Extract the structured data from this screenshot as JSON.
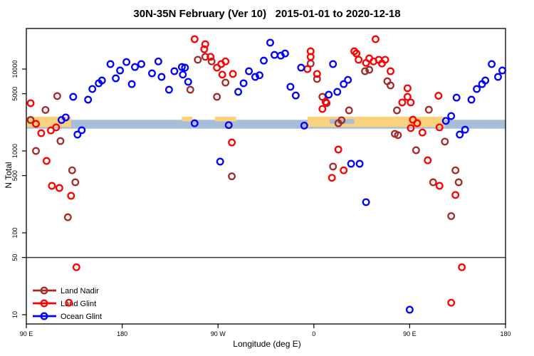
{
  "chart_data": {
    "type": "scatter",
    "title": "30N-35N February (Ver 10)   2015-01-01 to 2020-12-18",
    "xlabel": "Longitude (deg E)",
    "ylabel": "N Total",
    "x_axis": {
      "range": [
        90,
        540
      ],
      "ticks": [
        90,
        180,
        270,
        360,
        450,
        540
      ],
      "tick_labels": [
        "90 E",
        "180",
        "90 W",
        "0",
        "90 E",
        "180"
      ],
      "wraps_longitude": true
    },
    "y_axis": {
      "scale": "log10",
      "range": [
        7.5,
        33000
      ],
      "ticks": [
        10,
        50,
        100,
        500,
        1000,
        5000,
        10000
      ],
      "tick_labels": [
        "10",
        "50",
        "100",
        "500",
        "1000",
        "5000",
        "10000"
      ]
    },
    "reference_line": {
      "y": 50,
      "color": "#3a3a3a"
    },
    "bands": {
      "ocean_stripe": {
        "color": "#A8BDD9",
        "lon": [
          90,
          540
        ],
        "n": [
          1870,
          2400
        ]
      },
      "land_patches": {
        "color": "#FAD17C",
        "segments": [
          {
            "lon": [
              90,
              132
            ],
            "n": [
              1960,
              2620
            ]
          },
          {
            "lon": [
              236,
              246
            ],
            "n": [
              2300,
              2620
            ]
          },
          {
            "lon": [
              267,
              287
            ],
            "n": [
              2300,
              2620
            ]
          },
          {
            "lon": [
              354,
              483
            ],
            "n": [
              1960,
              2620
            ]
          }
        ]
      },
      "ocean_notch": {
        "color": "#A8BDD9",
        "lon": [
          375,
          398
        ],
        "n": [
          2150,
          2450
        ]
      }
    },
    "legend": {
      "position": "bottom-left-inside",
      "marker": "open-circle-on-line"
    },
    "series": [
      {
        "name": "Land Nadir",
        "color": "#A52A2A",
        "points": [
          [
            94,
            2390
          ],
          [
            108,
            3170
          ],
          [
            119,
            4680
          ],
          [
            122,
            1320
          ],
          [
            99,
            1000
          ],
          [
            133,
            580
          ],
          [
            136,
            414
          ],
          [
            129,
            155
          ],
          [
            251,
            13000
          ],
          [
            258,
            14100
          ],
          [
            264,
            12400
          ],
          [
            277,
            6840
          ],
          [
            269,
            4580
          ],
          [
            244,
            5600
          ],
          [
            283,
            490
          ],
          [
            357,
            11700
          ],
          [
            363,
            7570
          ],
          [
            368,
            4580
          ],
          [
            372,
            3830
          ],
          [
            393,
            3130
          ],
          [
            386,
            2370
          ],
          [
            383,
            2180
          ],
          [
            378,
            645
          ],
          [
            408,
            9420
          ],
          [
            412,
            9800
          ],
          [
            429,
            7100
          ],
          [
            432,
            6310
          ],
          [
            438,
            3130
          ],
          [
            468,
            3190
          ],
          [
            436,
            1620
          ],
          [
            439,
            1560
          ],
          [
            456,
            1020
          ],
          [
            472,
            414
          ],
          [
            483,
            1300
          ],
          [
            493,
            580
          ],
          [
            496,
            414
          ],
          [
            489,
            160
          ]
        ]
      },
      {
        "name": "Land Glint",
        "color": "#FF0000",
        "points": [
          [
            94,
            3830
          ],
          [
            99,
            2140
          ],
          [
            104,
            1650
          ],
          [
            113,
            1780
          ],
          [
            118,
            1940
          ],
          [
            109,
            755
          ],
          [
            114,
            375
          ],
          [
            121,
            353
          ],
          [
            132,
            283
          ],
          [
            137,
            38
          ],
          [
            130,
            14
          ],
          [
            248,
            23200
          ],
          [
            258,
            20100
          ],
          [
            257,
            17500
          ],
          [
            263,
            14100
          ],
          [
            269,
            10400
          ],
          [
            273,
            11500
          ],
          [
            277,
            12400
          ],
          [
            274,
            8560
          ],
          [
            284,
            8730
          ],
          [
            283,
            1270
          ],
          [
            357,
            16500
          ],
          [
            357,
            14100
          ],
          [
            354,
            10000
          ],
          [
            363,
            8730
          ],
          [
            368,
            3260
          ],
          [
            371,
            3980
          ],
          [
            383,
            1040
          ],
          [
            388,
            580
          ],
          [
            377,
            470
          ],
          [
            398,
            16500
          ],
          [
            418,
            23200
          ],
          [
            400,
            15500
          ],
          [
            402,
            13000
          ],
          [
            409,
            11900
          ],
          [
            412,
            13500
          ],
          [
            416,
            12400
          ],
          [
            421,
            13000
          ],
          [
            424,
            11700
          ],
          [
            427,
            13000
          ],
          [
            432,
            9420
          ],
          [
            448,
            5830
          ],
          [
            448,
            4580
          ],
          [
            443,
            3910
          ],
          [
            451,
            3910
          ],
          [
            453,
            2410
          ],
          [
            457,
            2180
          ],
          [
            451,
            1900
          ],
          [
            462,
            1680
          ],
          [
            467,
            770
          ],
          [
            478,
            375
          ],
          [
            477,
            4720
          ],
          [
            478,
            1940
          ],
          [
            493,
            290
          ],
          [
            499,
            38
          ],
          [
            489,
            14
          ]
        ]
      },
      {
        "name": "Ocean Glint",
        "color": "#0000FF",
        "points": [
          [
            134,
            4580
          ],
          [
            148,
            4230
          ],
          [
            152,
            5710
          ],
          [
            158,
            6700
          ],
          [
            161,
            7260
          ],
          [
            123,
            2390
          ],
          [
            127,
            2570
          ],
          [
            138,
            1585
          ],
          [
            142,
            1790
          ],
          [
            169,
            11500
          ],
          [
            174,
            7710
          ],
          [
            178,
            9610
          ],
          [
            184,
            12200
          ],
          [
            189,
            6560
          ],
          [
            192,
            10600
          ],
          [
            198,
            11500
          ],
          [
            208,
            8870
          ],
          [
            214,
            12400
          ],
          [
            217,
            8020
          ],
          [
            224,
            5600
          ],
          [
            229,
            9420
          ],
          [
            236,
            10600
          ],
          [
            237,
            8560
          ],
          [
            239,
            10400
          ],
          [
            242,
            6990
          ],
          [
            299,
            9420
          ],
          [
            305,
            8020
          ],
          [
            309,
            8400
          ],
          [
            313,
            12700
          ],
          [
            319,
            21000
          ],
          [
            294,
            6720
          ],
          [
            289,
            5270
          ],
          [
            248,
            2180
          ],
          [
            280,
            2070
          ],
          [
            272,
            740
          ],
          [
            323,
            14900
          ],
          [
            329,
            14600
          ],
          [
            333,
            15500
          ],
          [
            348,
            10400
          ],
          [
            338,
            6070
          ],
          [
            343,
            4760
          ],
          [
            374,
            4860
          ],
          [
            378,
            11500
          ],
          [
            382,
            5270
          ],
          [
            388,
            6560
          ],
          [
            392,
            7370
          ],
          [
            351,
            2040
          ],
          [
            395,
            697
          ],
          [
            403,
            697
          ],
          [
            409,
            237
          ],
          [
            527,
            11500
          ],
          [
            537,
            9610
          ],
          [
            533,
            8020
          ],
          [
            521,
            7260
          ],
          [
            518,
            6560
          ],
          [
            513,
            5710
          ],
          [
            508,
            4230
          ],
          [
            494,
            4480
          ],
          [
            489,
            2670
          ],
          [
            484,
            2330
          ],
          [
            502,
            1820
          ],
          [
            497,
            1585
          ],
          [
            450,
            11.5
          ]
        ]
      }
    ]
  },
  "colors": {
    "background": "#ffffff",
    "axis": "#000000",
    "text": "#000000"
  }
}
